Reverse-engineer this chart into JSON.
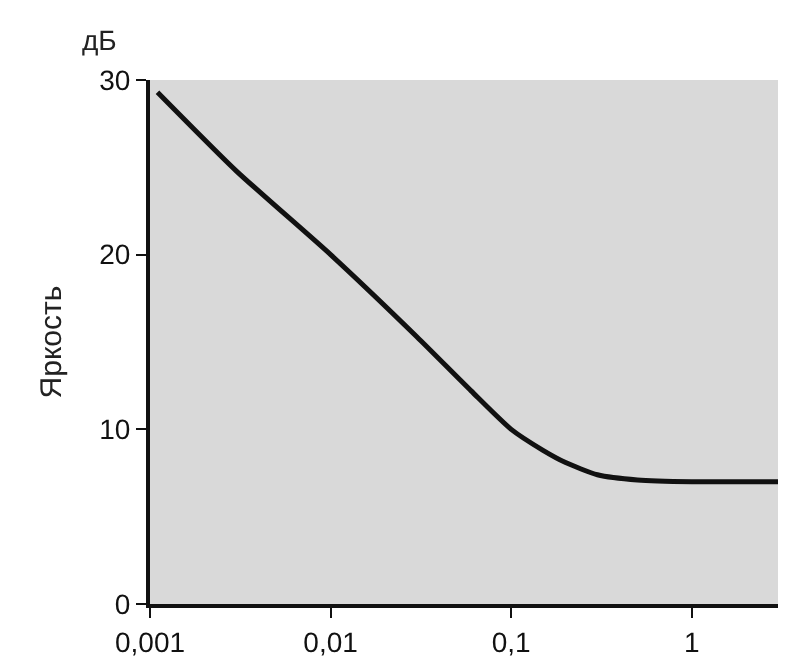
{
  "chart_data": {
    "type": "line",
    "ylabel": "Яркость",
    "annotations": [
      "дБ"
    ],
    "x": [
      0.0011,
      0.003,
      0.01,
      0.03,
      0.06,
      0.1,
      0.15,
      0.2,
      0.3,
      0.5,
      1,
      3
    ],
    "series": [
      {
        "color": "#111111",
        "values": [
          29.3,
          24.8,
          20,
          15.3,
          12.2,
          10,
          8.8,
          8.1,
          7.4,
          7.1,
          7,
          7
        ]
      }
    ],
    "log": "x",
    "xlim": [
      0.001,
      3
    ],
    "ylim": [
      0,
      30
    ],
    "xticks": [
      {
        "value": 0.001,
        "label": "0,001"
      },
      {
        "value": 0.01,
        "label": "0,01"
      },
      {
        "value": 0.1,
        "label": "0,1"
      },
      {
        "value": 1,
        "label": "1"
      }
    ],
    "yticks": [
      0,
      10,
      20,
      30
    ],
    "grid": false,
    "legend": false,
    "marker": "none",
    "line_style": "solid"
  }
}
